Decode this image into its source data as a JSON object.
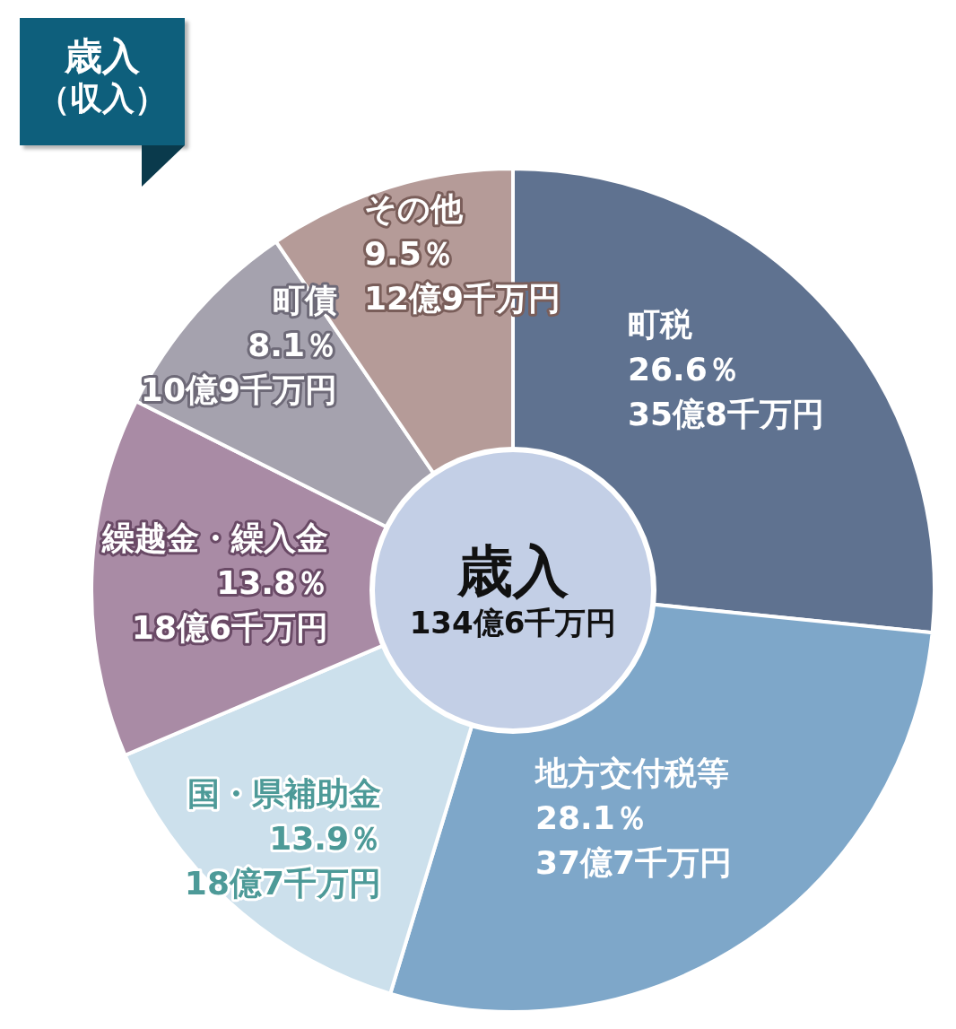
{
  "chart_data": {
    "type": "donut",
    "title": "歳入",
    "subtitle": "（収入）",
    "categories": [
      "町税",
      "地方交付税等",
      "国・県補助金",
      "繰越金・繰入金",
      "町債",
      "その他"
    ],
    "values": [
      26.6,
      28.1,
      13.9,
      13.8,
      8.1,
      9.5
    ],
    "colors": [
      "#5f7290",
      "#7ea7c9",
      "#cce0ec",
      "#a98ba5",
      "#a5a2ae",
      "#b59b98"
    ],
    "value_labels": [
      "26.6％",
      "28.1％",
      "13.9％",
      "13.8％",
      "8.1％",
      "9.5％"
    ],
    "annotations": [
      {
        "text": "35億8千万円",
        "x": "町税"
      },
      {
        "text": "37億7千万円",
        "x": "地方交付税等"
      },
      {
        "text": "18億7千万円",
        "x": "国・県補助金"
      },
      {
        "text": "18億6千万円",
        "x": "繰越金・繰入金"
      },
      {
        "text": "10億9千万円",
        "x": "町債"
      },
      {
        "text": "12億9千万円",
        "x": "その他"
      },
      "歳入",
      "134億6千万円"
    ]
  }
}
